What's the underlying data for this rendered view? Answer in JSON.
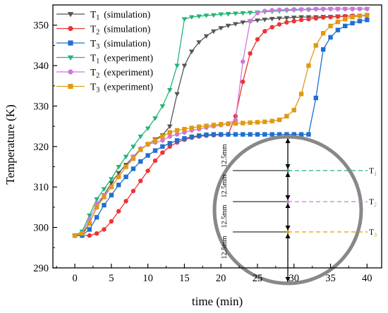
{
  "chart_data": {
    "type": "line",
    "xlabel": "time (min)",
    "ylabel": "Temperature (K)",
    "xlim": [
      -3,
      42
    ],
    "ylim": [
      290,
      355
    ],
    "xticks": [
      0,
      5,
      10,
      15,
      20,
      25,
      30,
      35,
      40
    ],
    "yticks": [
      290,
      300,
      310,
      320,
      330,
      340,
      350
    ],
    "grid": false,
    "legend_position": "top-left",
    "series": [
      {
        "name": "T1",
        "suffix": "(simulation)",
        "color": "#555555",
        "marker": "triangle-down",
        "x": [
          0,
          1,
          2,
          3,
          4,
          5,
          6,
          7,
          8,
          9,
          10,
          11,
          12,
          13,
          14,
          15,
          16,
          17,
          18,
          19,
          20,
          21,
          22,
          23,
          24,
          25,
          26,
          27,
          28,
          29,
          30,
          31,
          32,
          33,
          34,
          35,
          36,
          37,
          38,
          39,
          40
        ],
        "y": [
          298,
          298,
          301,
          305,
          308,
          311,
          313.5,
          315.5,
          317.5,
          319.3,
          320.5,
          321.8,
          322.8,
          325,
          333,
          340,
          343.5,
          345.8,
          347.3,
          348.5,
          349.3,
          349.9,
          350.3,
          350.7,
          351,
          351.2,
          351.4,
          351.6,
          351.7,
          351.8,
          351.9,
          352,
          352,
          352,
          352.1,
          352.1,
          352.2,
          352.2,
          352.3,
          352.3,
          352.3
        ]
      },
      {
        "name": "T2",
        "suffix": "(simulation)",
        "color": "#ee3333",
        "marker": "circle",
        "x": [
          0,
          1,
          2,
          3,
          4,
          5,
          6,
          7,
          8,
          9,
          10,
          11,
          12,
          13,
          14,
          15,
          16,
          17,
          18,
          19,
          20,
          21,
          22,
          23,
          24,
          25,
          26,
          27,
          28,
          29,
          30,
          31,
          32,
          33,
          34,
          35,
          36,
          37,
          38,
          39,
          40
        ],
        "y": [
          298,
          298,
          298,
          298.5,
          299.5,
          301.5,
          304,
          306.5,
          309,
          311.5,
          314,
          316.5,
          318.5,
          320,
          321,
          321.7,
          322.2,
          322.5,
          322.7,
          322.8,
          322.9,
          323,
          327.5,
          336,
          343,
          346.5,
          348.5,
          349.5,
          350.2,
          350.7,
          351,
          351.3,
          351.5,
          351.7,
          351.9,
          352,
          352.1,
          352.2,
          352.3,
          352.3,
          352.4
        ]
      },
      {
        "name": "T3",
        "suffix": "(simulation)",
        "color": "#1f6fd1",
        "marker": "square",
        "x": [
          0,
          1,
          2,
          3,
          4,
          5,
          6,
          7,
          8,
          9,
          10,
          11,
          12,
          13,
          14,
          15,
          16,
          17,
          18,
          19,
          20,
          21,
          22,
          23,
          24,
          25,
          26,
          27,
          28,
          29,
          30,
          31,
          32,
          33,
          34,
          35,
          36,
          37,
          38,
          39,
          40
        ],
        "y": [
          298,
          298,
          299.5,
          302.5,
          305.5,
          308,
          310.5,
          312.5,
          314.5,
          316.3,
          317.8,
          319,
          320,
          320.8,
          321.5,
          322,
          322.4,
          322.7,
          322.9,
          323,
          323,
          323,
          323,
          323,
          323,
          323,
          323,
          323,
          323,
          323,
          323,
          323,
          323,
          332,
          344,
          347,
          348.8,
          349.8,
          350.5,
          351,
          351.3
        ]
      },
      {
        "name": "T1",
        "suffix": "(experiment)",
        "color": "#22b573",
        "marker": "triangle-down",
        "x": [
          0,
          1,
          2,
          3,
          4,
          5,
          6,
          7,
          8,
          9,
          10,
          11,
          12,
          13,
          14,
          15,
          16,
          17,
          18,
          19,
          20,
          21,
          22,
          23,
          24,
          25,
          26,
          27,
          28,
          29,
          30,
          31,
          32,
          33,
          34,
          35,
          36,
          37,
          38,
          39,
          40
        ],
        "y": [
          298,
          299,
          303,
          307,
          309.5,
          312,
          315,
          317.5,
          320,
          322.5,
          324.5,
          327,
          330,
          334,
          340,
          351.5,
          352,
          352.2,
          352.4,
          352.5,
          352.7,
          352.8,
          352.9,
          353,
          353.1,
          353.2,
          353.3,
          353.4,
          353.5,
          353.6,
          353.7,
          353.8,
          353.8,
          353.9,
          353.9,
          354,
          354,
          354,
          354,
          354,
          354
        ]
      },
      {
        "name": "T2",
        "suffix": "(experiment)",
        "color": "#cc77dd",
        "marker": "circle",
        "x": [
          0,
          1,
          2,
          3,
          4,
          5,
          6,
          7,
          8,
          9,
          10,
          11,
          12,
          13,
          14,
          15,
          16,
          17,
          18,
          19,
          20,
          21,
          22,
          23,
          24,
          25,
          26,
          27,
          28,
          29,
          30,
          31,
          32,
          33,
          34,
          35,
          36,
          37,
          38,
          39,
          40
        ],
        "y": [
          298,
          298.5,
          302,
          306,
          308,
          310,
          312.5,
          315,
          317.5,
          319.5,
          320.5,
          321,
          321.5,
          322.5,
          323,
          323.5,
          324,
          324.3,
          324.7,
          325,
          325.3,
          325.7,
          326.5,
          341,
          351,
          353,
          353.5,
          353.7,
          353.8,
          353.8,
          353.9,
          353.9,
          353.9,
          354,
          354,
          354,
          354,
          354,
          354,
          354,
          354
        ]
      },
      {
        "name": "T3",
        "suffix": "(experiment)",
        "color": "#e09a10",
        "marker": "square",
        "x": [
          0,
          1,
          2,
          3,
          4,
          5,
          6,
          7,
          8,
          9,
          10,
          11,
          12,
          13,
          14,
          15,
          16,
          17,
          18,
          19,
          20,
          21,
          22,
          23,
          24,
          25,
          26,
          27,
          28,
          29,
          30,
          31,
          32,
          33,
          34,
          35,
          36,
          37,
          38,
          39,
          40
        ],
        "y": [
          298,
          298.5,
          301,
          305,
          307.5,
          310,
          312.5,
          315,
          317,
          319.2,
          320.6,
          321.5,
          322.5,
          323.5,
          324,
          324.3,
          324.6,
          324.9,
          325.1,
          325.3,
          325.5,
          325.6,
          325.7,
          325.8,
          325.9,
          326,
          326.1,
          326.3,
          326.6,
          327.5,
          329,
          333,
          340,
          345,
          348,
          349.8,
          350.8,
          351.5,
          352,
          352.3,
          352.5
        ]
      }
    ]
  },
  "inset": {
    "dimension_labels": [
      "12.5mm",
      "12.5mm",
      "12.5mm",
      "12.5mm"
    ],
    "probe_labels": [
      "T1",
      "T2",
      "T3"
    ],
    "probe_colors": [
      "#22b573",
      "#cc77dd",
      "#e09a10"
    ]
  }
}
